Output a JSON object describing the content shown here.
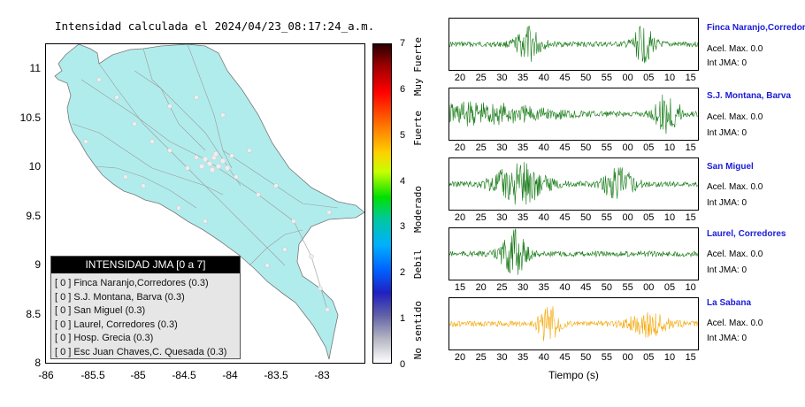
{
  "title": "Intensidad calculada el 2024/04/23_08:17:24_a.m.",
  "map": {
    "y_ticks": [
      "11",
      "10.5",
      "10",
      "9.5",
      "9",
      "8.5",
      "8"
    ],
    "x_ticks": [
      "-86",
      "-85.5",
      "-85",
      "-84.5",
      "-84",
      "-83.5",
      "-83"
    ],
    "lon_range": [
      -86,
      -82.5
    ],
    "lat_range": [
      8,
      11.25
    ],
    "land_color": "#b1ecec",
    "station_color": "#e6e6e6"
  },
  "legend": {
    "header": "INTENSIDAD JMA [0 a 7]",
    "items": [
      "[ 0 ]  Finca Naranjo,Corredores (0.3)",
      "[ 0 ]  S.J. Montana, Barva (0.3)",
      "[ 0 ]  San Miguel (0.3)",
      "[ 0 ]  Laurel, Corredores (0.3)",
      "[ 0 ]  Hosp. Grecia (0.3)",
      "[ 0 ]  Esc Juan Chaves,C. Quesada (0.3)"
    ]
  },
  "colorbar": {
    "numbers": [
      "7",
      "6",
      "5",
      "4",
      "3",
      "2",
      "1",
      "0"
    ],
    "labels": [
      "Muy Fuerte",
      "Fuerte",
      "Moderado",
      "Debil",
      "No sentido"
    ]
  },
  "panels": [
    {
      "station": "Finca Naranjo,Corredor",
      "accel": "Acel. Max. 0.0",
      "jma": "Int JMA: 0",
      "ticks": [
        "20",
        "25",
        "30",
        "35",
        "40",
        "45",
        "50",
        "55",
        "00",
        "05",
        "10",
        "15"
      ],
      "color": "#117811"
    },
    {
      "station": "S.J. Montana, Barva",
      "accel": "Acel. Max. 0.0",
      "jma": "Int JMA: 0",
      "ticks": [
        "20",
        "25",
        "30",
        "35",
        "40",
        "45",
        "50",
        "55",
        "00",
        "05",
        "10",
        "15"
      ],
      "color": "#117811"
    },
    {
      "station": "San Miguel",
      "accel": "Acel. Max. 0.0",
      "jma": "Int JMA: 0",
      "ticks": [
        "20",
        "25",
        "30",
        "35",
        "40",
        "45",
        "50",
        "55",
        "00",
        "05",
        "10",
        "15"
      ],
      "color": "#117811"
    },
    {
      "station": "Laurel, Corredores",
      "accel": "Acel. Max. 0.0",
      "jma": "Int JMA: 0",
      "ticks": [
        "15",
        "20",
        "25",
        "30",
        "35",
        "40",
        "45",
        "50",
        "55",
        "00",
        "05",
        "10"
      ],
      "color": "#117811"
    },
    {
      "station": "La Sabana",
      "accel": "Acel. Max. 0.0",
      "jma": "Int JMA: 0",
      "ticks": [
        "20",
        "25",
        "30",
        "35",
        "40",
        "45",
        "50",
        "55",
        "00",
        "05",
        "10",
        "15"
      ],
      "color": "#f5a500"
    }
  ],
  "x_axis_title": "Tiempo (s)"
}
